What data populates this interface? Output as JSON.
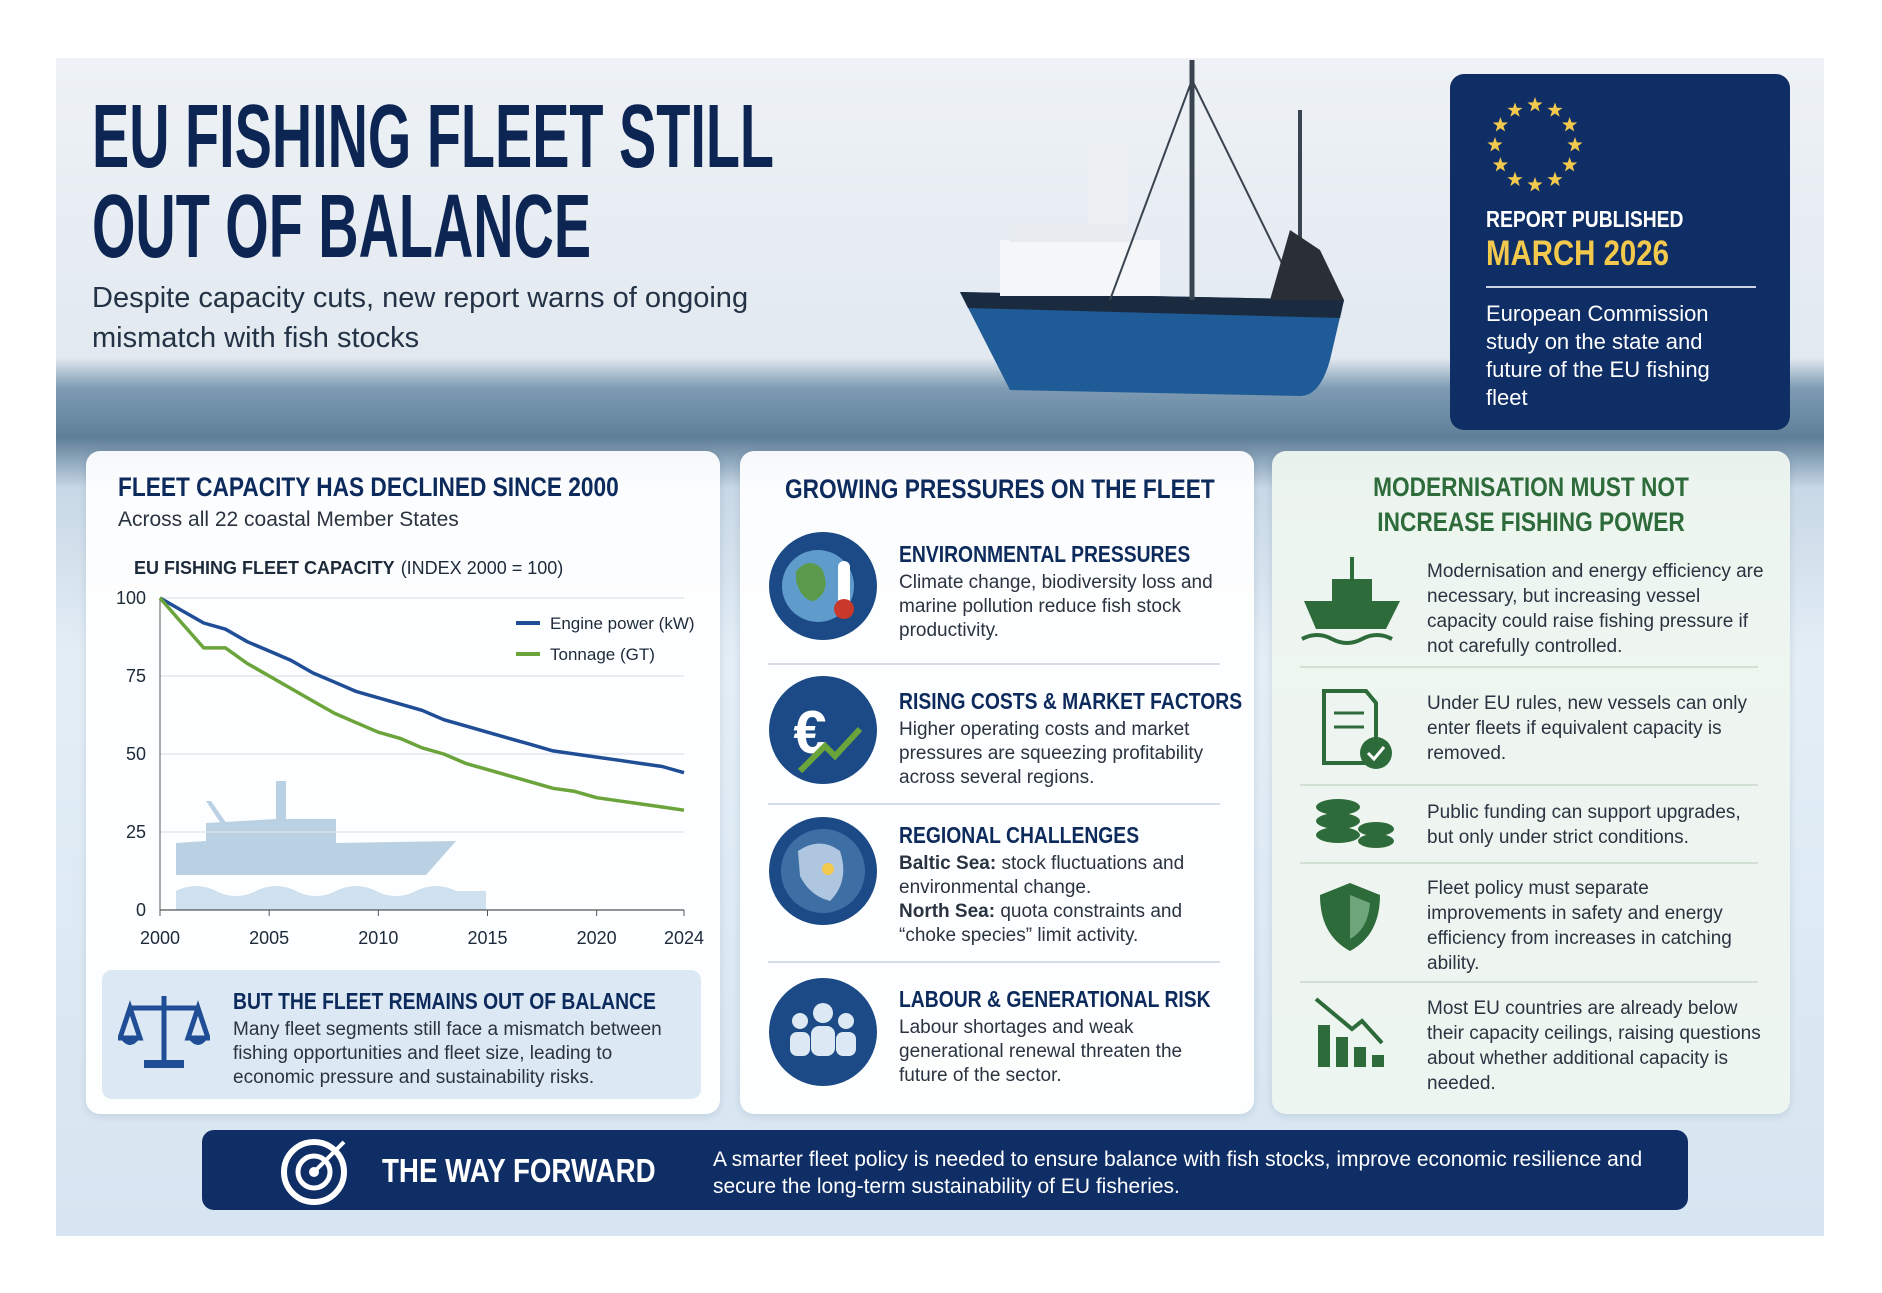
{
  "header": {
    "title_lines": [
      "EU FISHING FLEET STILL",
      "OUT OF BALANCE"
    ],
    "subtitle": "Despite capacity cuts, new report warns of ongoing mismatch with fish stocks"
  },
  "report_box": {
    "label": "REPORT PUBLISHED",
    "date": "MARCH 2026",
    "description": "European Commission study on the state and future of the EU fishing fleet"
  },
  "left_panel": {
    "heading": "FLEET CAPACITY HAS DECLINED SINCE 2000",
    "subheading": "Across all 22 coastal Member States",
    "callout": {
      "title": "BUT THE FLEET REMAINS OUT OF BALANCE",
      "text": "Many fleet segments still face a mismatch between fishing opportunities and fleet size, leading to economic pressure and sustainability risks."
    }
  },
  "chart_data": {
    "type": "line",
    "title": "EU FISHING FLEET CAPACITY",
    "title_note": "(INDEX 2000 = 100)",
    "x": [
      2000,
      2001,
      2002,
      2003,
      2004,
      2005,
      2006,
      2007,
      2008,
      2009,
      2010,
      2011,
      2012,
      2013,
      2014,
      2015,
      2016,
      2017,
      2018,
      2019,
      2020,
      2021,
      2022,
      2023,
      2024
    ],
    "series": [
      {
        "name": "Engine power (kW)",
        "color": "#1f4e96",
        "values": [
          100,
          96,
          92,
          90,
          86,
          83,
          80,
          76,
          73,
          70,
          68,
          66,
          64,
          61,
          59,
          57,
          55,
          53,
          51,
          50,
          49,
          48,
          47,
          46,
          44
        ]
      },
      {
        "name": "Tonnage (GT)",
        "color": "#6aa43a",
        "values": [
          100,
          92,
          84,
          84,
          79,
          75,
          71,
          67,
          63,
          60,
          57,
          55,
          52,
          50,
          47,
          45,
          43,
          41,
          39,
          38,
          36,
          35,
          34,
          33,
          32
        ]
      }
    ],
    "xlim": [
      2000,
      2024
    ],
    "xticks": [
      2000,
      2005,
      2010,
      2015,
      2020,
      2024
    ],
    "ylim": [
      0,
      100
    ],
    "yticks": [
      0,
      25,
      50,
      75,
      100
    ],
    "grid": true,
    "legend": "top-right"
  },
  "middle_panel": {
    "heading": "GROWING PRESSURES ON THE FLEET",
    "items": [
      {
        "title": "ENVIRONMENTAL PRESSURES",
        "text": "Climate change, biodiversity loss and marine pollution reduce fish stock productivity."
      },
      {
        "title": "RISING COSTS & MARKET FACTORS",
        "text": "Higher operating costs and market pressures are squeezing profitability across several regions."
      },
      {
        "title": "REGIONAL CHALLENGES",
        "entries": [
          {
            "label": "Baltic Sea:",
            "text": "stock fluctuations and environmental change."
          },
          {
            "label": "North Sea:",
            "text": "quota constraints and “choke species” limit activity."
          }
        ]
      },
      {
        "title": "LABOUR & GENERATIONAL RISK",
        "text": "Labour shortages and weak generational renewal threaten the future of the sector."
      }
    ]
  },
  "right_panel": {
    "heading_lines": [
      "MODERNISATION MUST NOT",
      "INCREASE FISHING POWER"
    ],
    "items": [
      "Modernisation and energy efficiency are necessary, but increasing vessel capacity could raise fishing pressure if not carefully controlled.",
      "Under EU rules, new vessels can only enter fleets if equivalent capacity is removed.",
      "Public funding can support upgrades, but only under strict conditions.",
      "Fleet policy must separate improvements in safety and energy efficiency from increases in catching ability.",
      "Most EU countries are already below their capacity ceilings, raising questions about whether additional capacity is needed."
    ]
  },
  "footer": {
    "title": "THE WAY FORWARD",
    "text": "A smarter fleet policy is needed to ensure balance with fish stocks, improve economic resilience and secure the long-term sustainability of EU fisheries."
  }
}
